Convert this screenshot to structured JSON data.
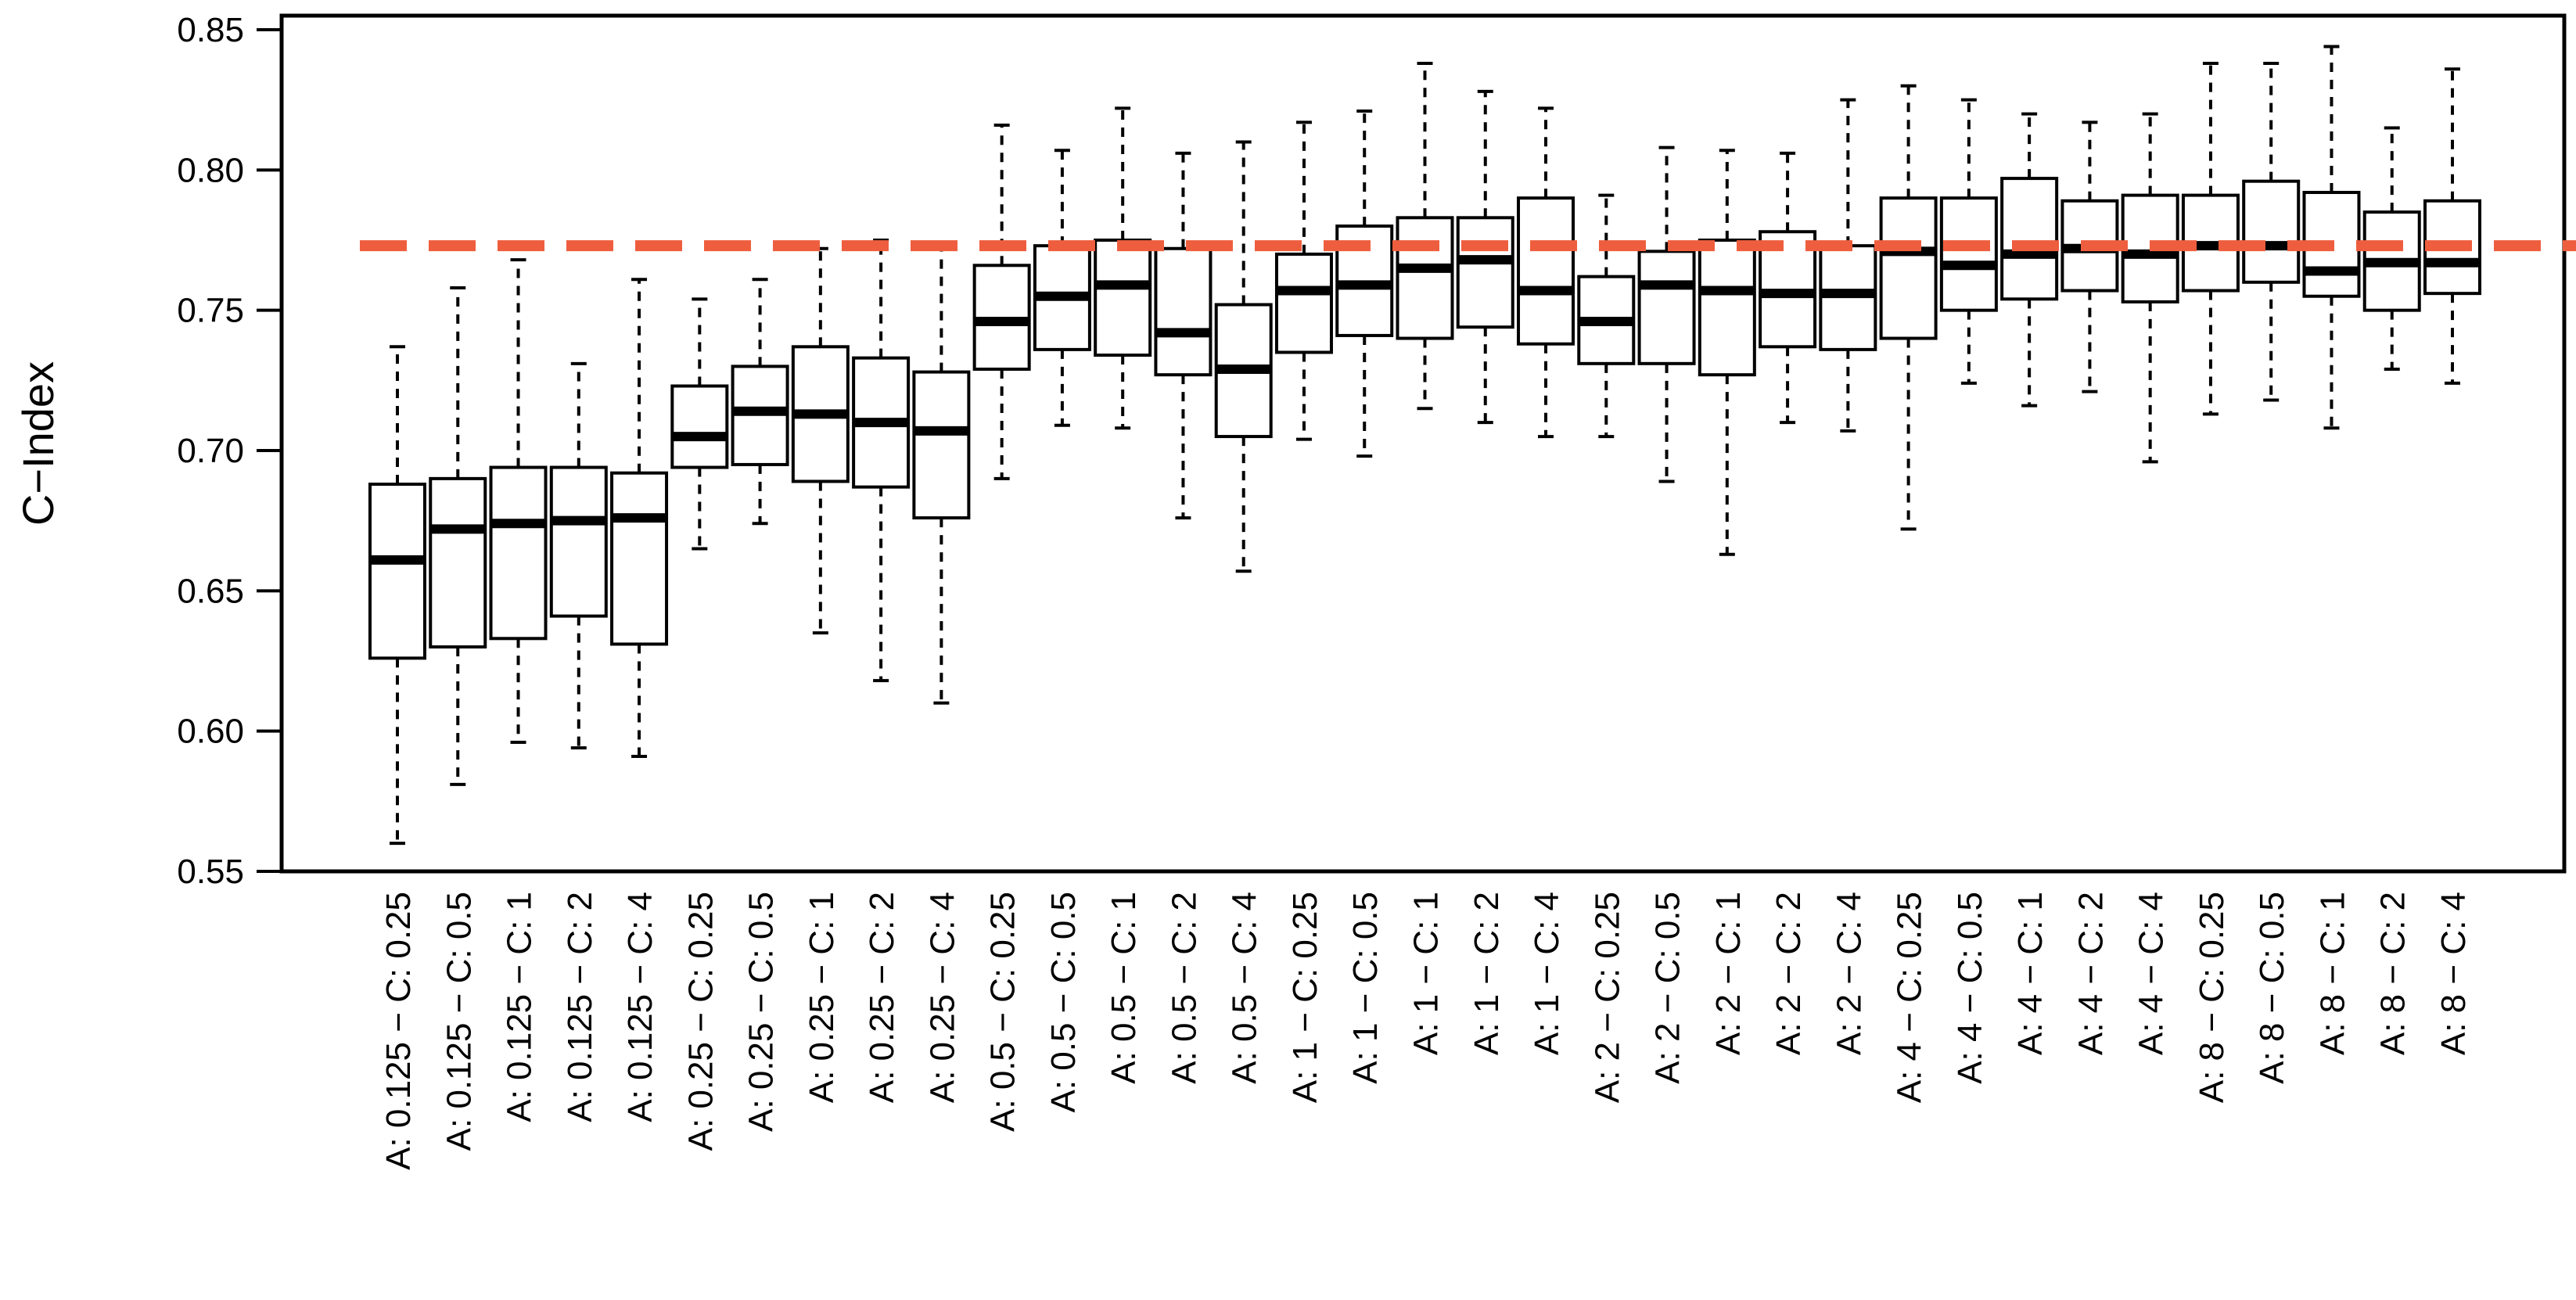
{
  "chart_data": {
    "type": "boxplot",
    "title": "",
    "xlabel": "",
    "ylabel": "C−Index",
    "ylim": [
      0.55,
      0.85
    ],
    "yticks": [
      "0.55",
      "0.60",
      "0.65",
      "0.70",
      "0.75",
      "0.80",
      "0.85"
    ],
    "reference_line": {
      "value": 0.773,
      "style": "dashed",
      "color": "#EE5E3E"
    },
    "colors": {
      "box_stroke": "#000000",
      "median": "#000000",
      "axis": "#000000"
    },
    "boxes": [
      {
        "label": "A: 0.125 − C: 0.25",
        "min": 0.56,
        "q1": 0.626,
        "median": 0.661,
        "q3": 0.688,
        "max": 0.737
      },
      {
        "label": "A: 0.125 − C: 0.5",
        "min": 0.581,
        "q1": 0.63,
        "median": 0.672,
        "q3": 0.69,
        "max": 0.758
      },
      {
        "label": "A: 0.125 − C: 1",
        "min": 0.596,
        "q1": 0.633,
        "median": 0.674,
        "q3": 0.694,
        "max": 0.768
      },
      {
        "label": "A: 0.125 − C: 2",
        "min": 0.594,
        "q1": 0.641,
        "median": 0.675,
        "q3": 0.694,
        "max": 0.731
      },
      {
        "label": "A: 0.125 − C: 4",
        "min": 0.591,
        "q1": 0.631,
        "median": 0.676,
        "q3": 0.692,
        "max": 0.761
      },
      {
        "label": "A: 0.25 − C: 0.25",
        "min": 0.665,
        "q1": 0.694,
        "median": 0.705,
        "q3": 0.723,
        "max": 0.754
      },
      {
        "label": "A: 0.25 − C: 0.5",
        "min": 0.674,
        "q1": 0.695,
        "median": 0.714,
        "q3": 0.73,
        "max": 0.761
      },
      {
        "label": "A: 0.25 − C: 1",
        "min": 0.635,
        "q1": 0.689,
        "median": 0.713,
        "q3": 0.737,
        "max": 0.772
      },
      {
        "label": "A: 0.25 − C: 2",
        "min": 0.618,
        "q1": 0.687,
        "median": 0.71,
        "q3": 0.733,
        "max": 0.775
      },
      {
        "label": "A: 0.25 − C: 4",
        "min": 0.61,
        "q1": 0.676,
        "median": 0.707,
        "q3": 0.728,
        "max": 0.774
      },
      {
        "label": "A: 0.5 − C: 0.25",
        "min": 0.69,
        "q1": 0.729,
        "median": 0.746,
        "q3": 0.766,
        "max": 0.816
      },
      {
        "label": "A: 0.5 − C: 0.5",
        "min": 0.709,
        "q1": 0.736,
        "median": 0.755,
        "q3": 0.773,
        "max": 0.807
      },
      {
        "label": "A: 0.5 − C: 1",
        "min": 0.708,
        "q1": 0.734,
        "median": 0.759,
        "q3": 0.775,
        "max": 0.822
      },
      {
        "label": "A: 0.5 − C: 2",
        "min": 0.676,
        "q1": 0.727,
        "median": 0.742,
        "q3": 0.772,
        "max": 0.806
      },
      {
        "label": "A: 0.5 − C: 4",
        "min": 0.657,
        "q1": 0.705,
        "median": 0.729,
        "q3": 0.752,
        "max": 0.81
      },
      {
        "label": "A: 1 − C: 0.25",
        "min": 0.704,
        "q1": 0.735,
        "median": 0.757,
        "q3": 0.77,
        "max": 0.817
      },
      {
        "label": "A: 1 − C: 0.5",
        "min": 0.698,
        "q1": 0.741,
        "median": 0.759,
        "q3": 0.78,
        "max": 0.821
      },
      {
        "label": "A: 1 − C: 1",
        "min": 0.715,
        "q1": 0.74,
        "median": 0.765,
        "q3": 0.783,
        "max": 0.838
      },
      {
        "label": "A: 1 − C: 2",
        "min": 0.71,
        "q1": 0.744,
        "median": 0.768,
        "q3": 0.783,
        "max": 0.828
      },
      {
        "label": "A: 1 − C: 4",
        "min": 0.705,
        "q1": 0.738,
        "median": 0.757,
        "q3": 0.79,
        "max": 0.822
      },
      {
        "label": "A: 2 − C: 0.25",
        "min": 0.705,
        "q1": 0.731,
        "median": 0.746,
        "q3": 0.762,
        "max": 0.791
      },
      {
        "label": "A: 2 − C: 0.5",
        "min": 0.689,
        "q1": 0.731,
        "median": 0.759,
        "q3": 0.771,
        "max": 0.808
      },
      {
        "label": "A: 2 − C: 1",
        "min": 0.663,
        "q1": 0.727,
        "median": 0.757,
        "q3": 0.775,
        "max": 0.807
      },
      {
        "label": "A: 2 − C: 2",
        "min": 0.71,
        "q1": 0.737,
        "median": 0.756,
        "q3": 0.778,
        "max": 0.806
      },
      {
        "label": "A: 2 − C: 4",
        "min": 0.707,
        "q1": 0.736,
        "median": 0.756,
        "q3": 0.773,
        "max": 0.825
      },
      {
        "label": "A: 4 − C: 0.25",
        "min": 0.672,
        "q1": 0.74,
        "median": 0.771,
        "q3": 0.79,
        "max": 0.83
      },
      {
        "label": "A: 4 − C: 0.5",
        "min": 0.724,
        "q1": 0.75,
        "median": 0.766,
        "q3": 0.79,
        "max": 0.825
      },
      {
        "label": "A: 4 − C: 1",
        "min": 0.716,
        "q1": 0.754,
        "median": 0.77,
        "q3": 0.797,
        "max": 0.82
      },
      {
        "label": "A: 4 − C: 2",
        "min": 0.721,
        "q1": 0.757,
        "median": 0.772,
        "q3": 0.789,
        "max": 0.817
      },
      {
        "label": "A: 4 − C: 4",
        "min": 0.696,
        "q1": 0.753,
        "median": 0.77,
        "q3": 0.791,
        "max": 0.82
      },
      {
        "label": "A: 8 − C: 0.25",
        "min": 0.713,
        "q1": 0.757,
        "median": 0.773,
        "q3": 0.791,
        "max": 0.838
      },
      {
        "label": "A: 8 − C: 0.5",
        "min": 0.718,
        "q1": 0.76,
        "median": 0.773,
        "q3": 0.796,
        "max": 0.838
      },
      {
        "label": "A: 8 − C: 1",
        "min": 0.708,
        "q1": 0.755,
        "median": 0.764,
        "q3": 0.792,
        "max": 0.844
      },
      {
        "label": "A: 8 − C: 2",
        "min": 0.729,
        "q1": 0.75,
        "median": 0.767,
        "q3": 0.785,
        "max": 0.815
      },
      {
        "label": "A: 8 − C: 4",
        "min": 0.724,
        "q1": 0.756,
        "median": 0.767,
        "q3": 0.789,
        "max": 0.836
      }
    ]
  }
}
